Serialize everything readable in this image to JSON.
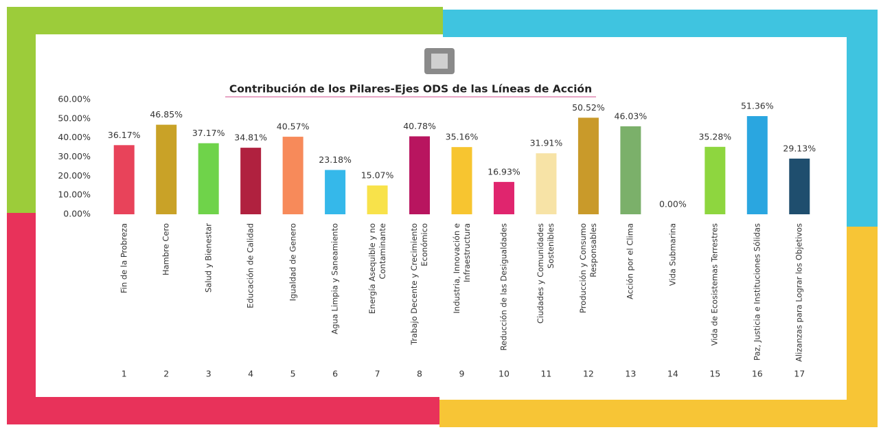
{
  "chart_data": {
    "type": "bar",
    "title": "Contribución de los Pilares-Ejes ODS de las Líneas de Acción",
    "categories": [
      "Fin de la Probreza",
      "Hambre Cero",
      "Salud y Bienestar",
      "Educación de Calidad",
      "Igualdad de Genero",
      "Agua Limpia y Saneamiento",
      "Energía Asequible y no Contaminante",
      "Trabajo Decente y Crecimiento Económico",
      "Industria, Innovación e Infraestructura",
      "Reducción de las Desigualdades",
      "Ciudades y Comunidades Sostenibles",
      "Producción y Consumo Responsables",
      "Acción por el Clima",
      "Vida Submarina",
      "Vida de Ecosistemas Terrestres",
      "Paz, Justicia e Instituciones Sólidas",
      "Alizanzas para Lograr los Objetivos"
    ],
    "category_numbers": [
      1,
      2,
      3,
      4,
      5,
      6,
      7,
      8,
      9,
      10,
      11,
      12,
      13,
      14,
      15,
      16,
      17
    ],
    "values": [
      36.17,
      46.85,
      37.17,
      34.81,
      40.57,
      23.18,
      15.07,
      40.78,
      35.16,
      16.93,
      31.91,
      50.52,
      46.03,
      0,
      35.28,
      51.36,
      29.13
    ],
    "value_labels": [
      "36.17%",
      "46.85%",
      "37.17%",
      "34.81%",
      "40.57%",
      "23.18%",
      "15.07%",
      "40.78%",
      "35.16%",
      "16.93%",
      "31.91%",
      "50.52%",
      "46.03%",
      "0.00%",
      "35.28%",
      "51.36%",
      "29.13%"
    ],
    "colors": [
      "#e8435a",
      "#c9a227",
      "#6fd34a",
      "#b0213f",
      "#f78a5a",
      "#35b8ea",
      "#f8e24a",
      "#b8155f",
      "#f7c530",
      "#e0256e",
      "#f7e3a6",
      "#c99a2a",
      "#7bb06a",
      "#0a97d9",
      "#8ed63f",
      "#2aa6e0",
      "#1f4e6e"
    ],
    "ylim": [
      0,
      60
    ],
    "yticks": [
      {
        "value": 0,
        "label": "0.00%"
      },
      {
        "value": 10,
        "label": "10.00%"
      },
      {
        "value": 20,
        "label": "20.00%"
      },
      {
        "value": 30,
        "label": "30.00%"
      },
      {
        "value": 40,
        "label": "40.00%"
      },
      {
        "value": 50,
        "label": "50.00%"
      },
      {
        "value": 60,
        "label": "60.00%"
      }
    ],
    "grid": false
  }
}
